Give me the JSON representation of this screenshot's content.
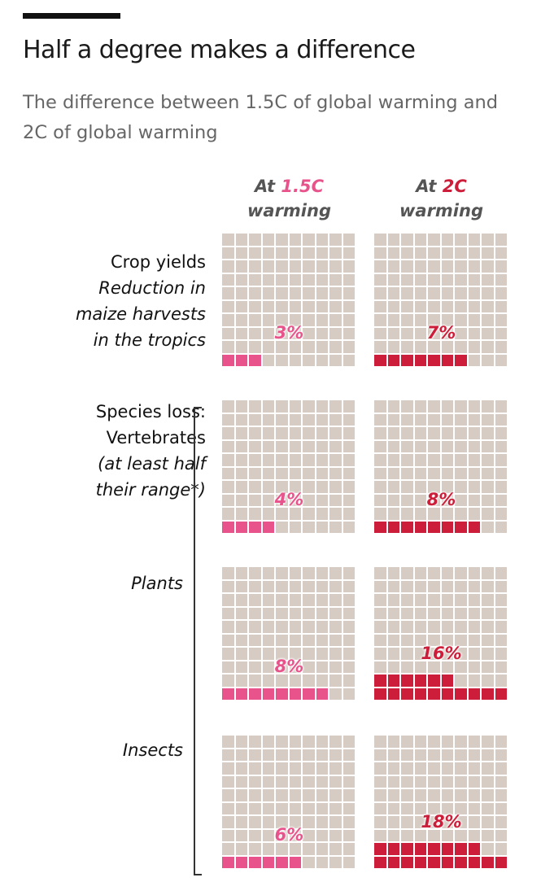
{
  "header": {
    "title": "Half a degree makes a difference",
    "subtitle": "The difference between 1.5C of global warming and 2C of global warming"
  },
  "colors": {
    "pink": "#e8538c",
    "red": "#cc1e3a",
    "empty": "#d6ccc3"
  },
  "columns": [
    {
      "prefix": "At ",
      "value": "1.5C",
      "suffix": "warming"
    },
    {
      "prefix": "At ",
      "value": "2C",
      "suffix": "warming"
    }
  ],
  "rows_labels": {
    "crop": {
      "title": "Crop yields",
      "sub1": "Reduction in",
      "sub2": "maize harvests",
      "sub3": "in the tropics"
    },
    "vert": {
      "t1": "Species loss:",
      "t2": "Vertebrates",
      "s1": "(at least half",
      "s2": "their range*)"
    },
    "plants": "Plants",
    "insects": "Insects"
  },
  "chart_data": {
    "type": "waffle",
    "grid": "10x10",
    "title": "Half a degree makes a difference",
    "categories": [
      "Crop yields",
      "Vertebrates",
      "Plants",
      "Insects"
    ],
    "series": [
      {
        "name": "At 1.5C warming",
        "values": [
          3,
          4,
          8,
          6
        ],
        "labels": [
          "3%",
          "4%",
          "8%",
          "6%"
        ]
      },
      {
        "name": "At 2C warming",
        "values": [
          7,
          8,
          16,
          18
        ],
        "labels": [
          "7%",
          "8%",
          "16%",
          "18%"
        ]
      }
    ]
  }
}
